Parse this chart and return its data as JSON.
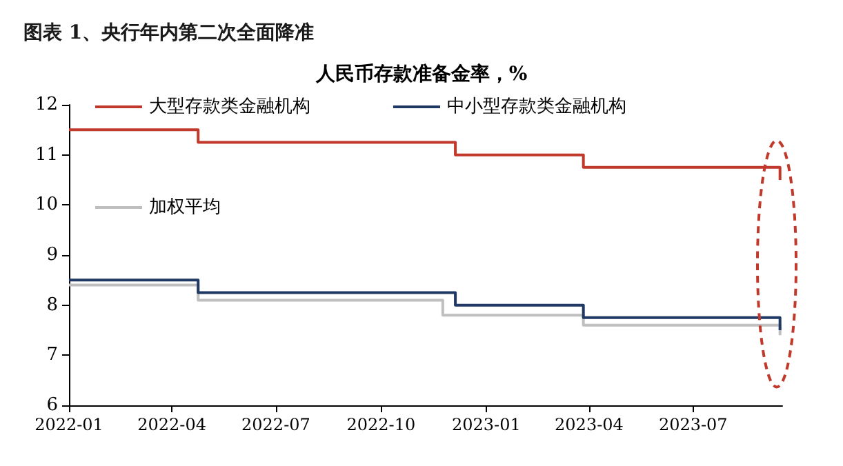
{
  "chart_data": {
    "type": "step",
    "title": "图表 1、央行年内第二次全面降准",
    "subtitle": "人民币存款准备金率，%",
    "xlim": [
      "2022-01-01",
      "2023-09-17"
    ],
    "xticks": [
      "2022-01",
      "2022-04",
      "2022-07",
      "2022-10",
      "2023-01",
      "2023-04",
      "2023-07"
    ],
    "ylim": [
      6,
      12
    ],
    "yticks": [
      6,
      7,
      8,
      9,
      10,
      11,
      12
    ],
    "grid": false,
    "legend": "top",
    "marker": "none",
    "line_style": "solid",
    "series": [
      {
        "name": "大型存款类金融机构",
        "color": "#c0392b",
        "x": [
          "2022-01-01",
          "2022-04-24",
          "2022-12-05",
          "2023-03-27",
          "2023-09-15"
        ],
        "values": [
          11.5,
          11.25,
          11.0,
          10.75,
          10.5
        ]
      },
      {
        "name": "中小型存款类金融机构",
        "color": "#1f3864",
        "x": [
          "2022-01-01",
          "2022-04-24",
          "2022-12-05",
          "2023-03-27",
          "2023-09-15"
        ],
        "values": [
          8.5,
          8.25,
          8.0,
          7.75,
          7.5
        ]
      },
      {
        "name": "加权平均",
        "color": "#bfbfbf",
        "x": [
          "2022-01-01",
          "2022-04-24",
          "2022-11-24",
          "2023-03-27",
          "2023-09-15"
        ],
        "values": [
          8.4,
          8.1,
          7.8,
          7.6,
          7.4
        ]
      }
    ]
  }
}
